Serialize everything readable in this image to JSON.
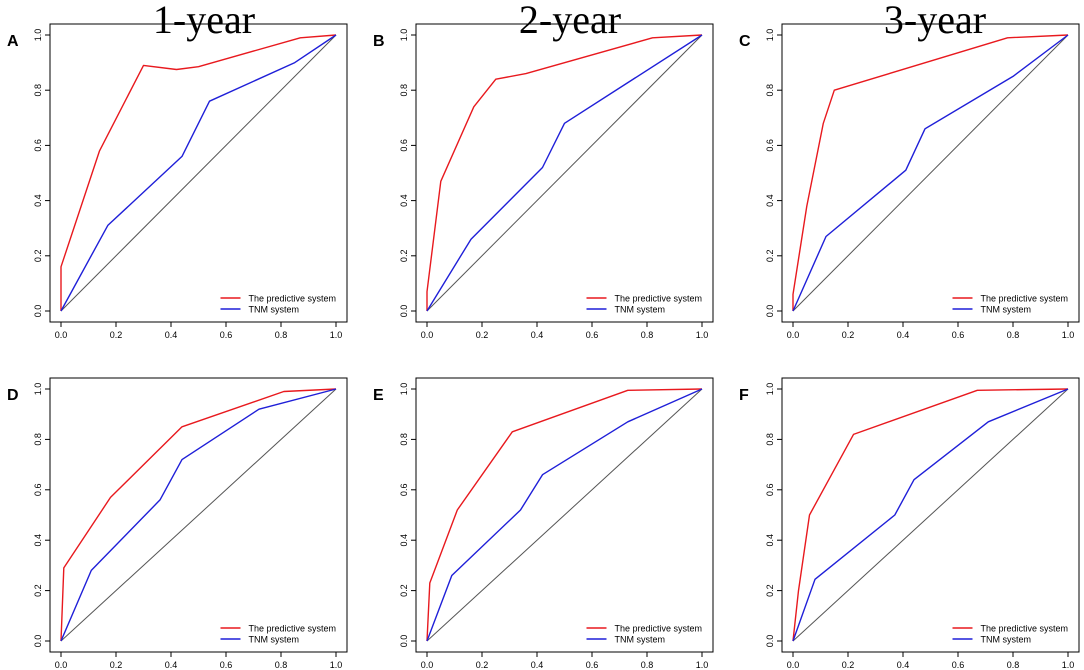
{
  "column_titles": [
    "1-year",
    "2-year",
    "3-year"
  ],
  "colors": {
    "predictive": "#e8191e",
    "tnm": "#1f1fd8",
    "diagonal": "#555555",
    "frame": "#000000"
  },
  "chart_data": [
    {
      "type": "line",
      "panel": "A",
      "column": "1-year",
      "row": 1,
      "xlim": [
        0,
        1
      ],
      "ylim": [
        0,
        1
      ],
      "xticks": [
        "0.0",
        "0.2",
        "0.4",
        "0.6",
        "0.8",
        "1.0"
      ],
      "yticks": [
        "0.0",
        "0.2",
        "0.4",
        "0.6",
        "0.8",
        "1.0"
      ],
      "legend_position": "bottom-right",
      "reference_line": [
        [
          0,
          0
        ],
        [
          1,
          1
        ]
      ],
      "series": [
        {
          "name": "The predictive system",
          "color": "#e8191e",
          "points": [
            [
              0,
              0
            ],
            [
              0,
              0.16
            ],
            [
              0.14,
              0.58
            ],
            [
              0.3,
              0.89
            ],
            [
              0.42,
              0.875
            ],
            [
              0.5,
              0.885
            ],
            [
              0.87,
              0.99
            ],
            [
              1,
              1
            ]
          ]
        },
        {
          "name": "TNM system",
          "color": "#1f1fd8",
          "points": [
            [
              0,
              0
            ],
            [
              0.17,
              0.31
            ],
            [
              0.44,
              0.56
            ],
            [
              0.54,
              0.76
            ],
            [
              0.85,
              0.9
            ],
            [
              1,
              1
            ]
          ]
        }
      ]
    },
    {
      "type": "line",
      "panel": "B",
      "column": "2-year",
      "row": 1,
      "xlim": [
        0,
        1
      ],
      "ylim": [
        0,
        1
      ],
      "xticks": [
        "0.0",
        "0.2",
        "0.4",
        "0.6",
        "0.8",
        "1.0"
      ],
      "yticks": [
        "0.0",
        "0.2",
        "0.4",
        "0.6",
        "0.8",
        "1.0"
      ],
      "legend_position": "bottom-right",
      "reference_line": [
        [
          0,
          0
        ],
        [
          1,
          1
        ]
      ],
      "series": [
        {
          "name": "The predictive system",
          "color": "#e8191e",
          "points": [
            [
              0,
              0
            ],
            [
              0,
              0.07
            ],
            [
              0.05,
              0.47
            ],
            [
              0.17,
              0.74
            ],
            [
              0.25,
              0.84
            ],
            [
              0.36,
              0.86
            ],
            [
              0.82,
              0.99
            ],
            [
              1,
              1
            ]
          ]
        },
        {
          "name": "TNM system",
          "color": "#1f1fd8",
          "points": [
            [
              0,
              0
            ],
            [
              0.16,
              0.26
            ],
            [
              0.42,
              0.52
            ],
            [
              0.5,
              0.68
            ],
            [
              1,
              1
            ]
          ]
        }
      ]
    },
    {
      "type": "line",
      "panel": "C",
      "column": "3-year",
      "row": 1,
      "xlim": [
        0,
        1
      ],
      "ylim": [
        0,
        1
      ],
      "xticks": [
        "0.0",
        "0.2",
        "0.4",
        "0.6",
        "0.8",
        "1.0"
      ],
      "yticks": [
        "0.0",
        "0.2",
        "0.4",
        "0.6",
        "0.8",
        "1.0"
      ],
      "legend_position": "bottom-right",
      "reference_line": [
        [
          0,
          0
        ],
        [
          1,
          1
        ]
      ],
      "series": [
        {
          "name": "The predictive system",
          "color": "#e8191e",
          "points": [
            [
              0,
              0
            ],
            [
              0,
              0.06
            ],
            [
              0.05,
              0.38
            ],
            [
              0.11,
              0.68
            ],
            [
              0.15,
              0.8
            ],
            [
              0.78,
              0.99
            ],
            [
              1,
              1
            ]
          ]
        },
        {
          "name": "TNM system",
          "color": "#1f1fd8",
          "points": [
            [
              0,
              0
            ],
            [
              0.12,
              0.27
            ],
            [
              0.41,
              0.51
            ],
            [
              0.48,
              0.66
            ],
            [
              0.8,
              0.85
            ],
            [
              1,
              1
            ]
          ]
        }
      ]
    },
    {
      "type": "line",
      "panel": "D",
      "column": "1-year",
      "row": 2,
      "xlim": [
        0,
        1
      ],
      "ylim": [
        0,
        1
      ],
      "xticks": [
        "0.0",
        "0.2",
        "0.4",
        "0.6",
        "0.8",
        "1.0"
      ],
      "yticks": [
        "0.0",
        "0.2",
        "0.4",
        "0.6",
        "0.8",
        "1.0"
      ],
      "legend_position": "bottom-right",
      "reference_line": [
        [
          0,
          0
        ],
        [
          1,
          1
        ]
      ],
      "series": [
        {
          "name": "The predictive system",
          "color": "#e8191e",
          "points": [
            [
              0,
              0
            ],
            [
              0.01,
              0.29
            ],
            [
              0.18,
              0.57
            ],
            [
              0.44,
              0.85
            ],
            [
              0.81,
              0.99
            ],
            [
              1,
              1
            ]
          ]
        },
        {
          "name": "TNM system",
          "color": "#1f1fd8",
          "points": [
            [
              0,
              0
            ],
            [
              0.11,
              0.28
            ],
            [
              0.36,
              0.56
            ],
            [
              0.44,
              0.72
            ],
            [
              0.72,
              0.92
            ],
            [
              1,
              1
            ]
          ]
        }
      ]
    },
    {
      "type": "line",
      "panel": "E",
      "column": "2-year",
      "row": 2,
      "xlim": [
        0,
        1
      ],
      "ylim": [
        0,
        1
      ],
      "xticks": [
        "0.0",
        "0.2",
        "0.4",
        "0.6",
        "0.8",
        "1.0"
      ],
      "yticks": [
        "0.0",
        "0.2",
        "0.4",
        "0.6",
        "0.8",
        "1.0"
      ],
      "legend_position": "bottom-right",
      "reference_line": [
        [
          0,
          0
        ],
        [
          1,
          1
        ]
      ],
      "series": [
        {
          "name": "The predictive system",
          "color": "#e8191e",
          "points": [
            [
              0,
              0
            ],
            [
              0.01,
              0.23
            ],
            [
              0.11,
              0.52
            ],
            [
              0.31,
              0.83
            ],
            [
              0.73,
              0.995
            ],
            [
              1,
              1
            ]
          ]
        },
        {
          "name": "TNM system",
          "color": "#1f1fd8",
          "points": [
            [
              0,
              0
            ],
            [
              0.09,
              0.26
            ],
            [
              0.34,
              0.52
            ],
            [
              0.42,
              0.66
            ],
            [
              0.73,
              0.87
            ],
            [
              1,
              1
            ]
          ]
        }
      ]
    },
    {
      "type": "line",
      "panel": "F",
      "column": "3-year",
      "row": 2,
      "xlim": [
        0,
        1
      ],
      "ylim": [
        0,
        1
      ],
      "xticks": [
        "0.0",
        "0.2",
        "0.4",
        "0.6",
        "0.8",
        "1.0"
      ],
      "yticks": [
        "0.0",
        "0.2",
        "0.4",
        "0.6",
        "0.8",
        "1.0"
      ],
      "legend_position": "bottom-right",
      "reference_line": [
        [
          0,
          0
        ],
        [
          1,
          1
        ]
      ],
      "series": [
        {
          "name": "The predictive system",
          "color": "#e8191e",
          "points": [
            [
              0,
              0
            ],
            [
              0.02,
              0.2
            ],
            [
              0.06,
              0.5
            ],
            [
              0.22,
              0.82
            ],
            [
              0.67,
              0.995
            ],
            [
              1,
              1
            ]
          ]
        },
        {
          "name": "TNM system",
          "color": "#1f1fd8",
          "points": [
            [
              0,
              0
            ],
            [
              0.08,
              0.245
            ],
            [
              0.37,
              0.5
            ],
            [
              0.44,
              0.64
            ],
            [
              0.71,
              0.87
            ],
            [
              1,
              1
            ]
          ]
        }
      ]
    }
  ]
}
